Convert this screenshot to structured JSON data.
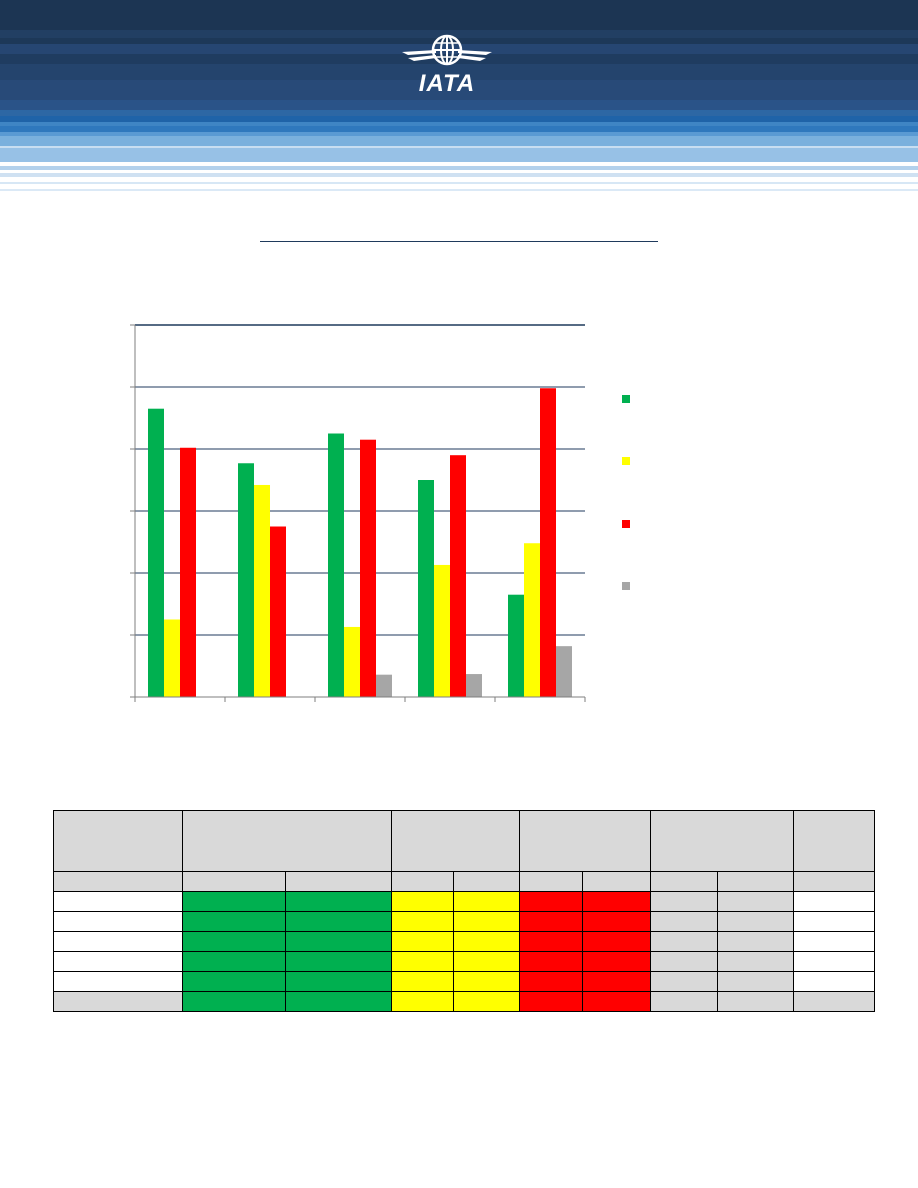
{
  "header": {
    "logo_text": "IATA",
    "brand_color": "#1e3a5c",
    "logo_icon": "globe-wings-icon"
  },
  "chart_data": {
    "type": "bar",
    "title": "",
    "categories": [
      "",
      "",
      "",
      "",
      ""
    ],
    "series": [
      {
        "color": "#00b050",
        "values": [
          4.65,
          3.77,
          4.25,
          3.5,
          1.65
        ]
      },
      {
        "color": "#ffff00",
        "values": [
          1.25,
          3.42,
          1.13,
          2.13,
          2.48
        ]
      },
      {
        "color": "#ff0000",
        "values": [
          4.02,
          2.75,
          4.15,
          3.9,
          4.98
        ]
      },
      {
        "color": "#a6a6a6",
        "values": [
          0,
          0,
          0.36,
          0.37,
          0.82
        ]
      }
    ],
    "ylim": [
      0,
      6
    ],
    "yticks": [
      0,
      1,
      2,
      3,
      4,
      5,
      6
    ],
    "grid": true,
    "legend_placement": "right"
  },
  "table": {
    "colors": {
      "green": "#00b050",
      "yellow": "#ffff00",
      "red": "#ff0000",
      "grey": "#d9d9d9"
    },
    "row_count": 6
  }
}
